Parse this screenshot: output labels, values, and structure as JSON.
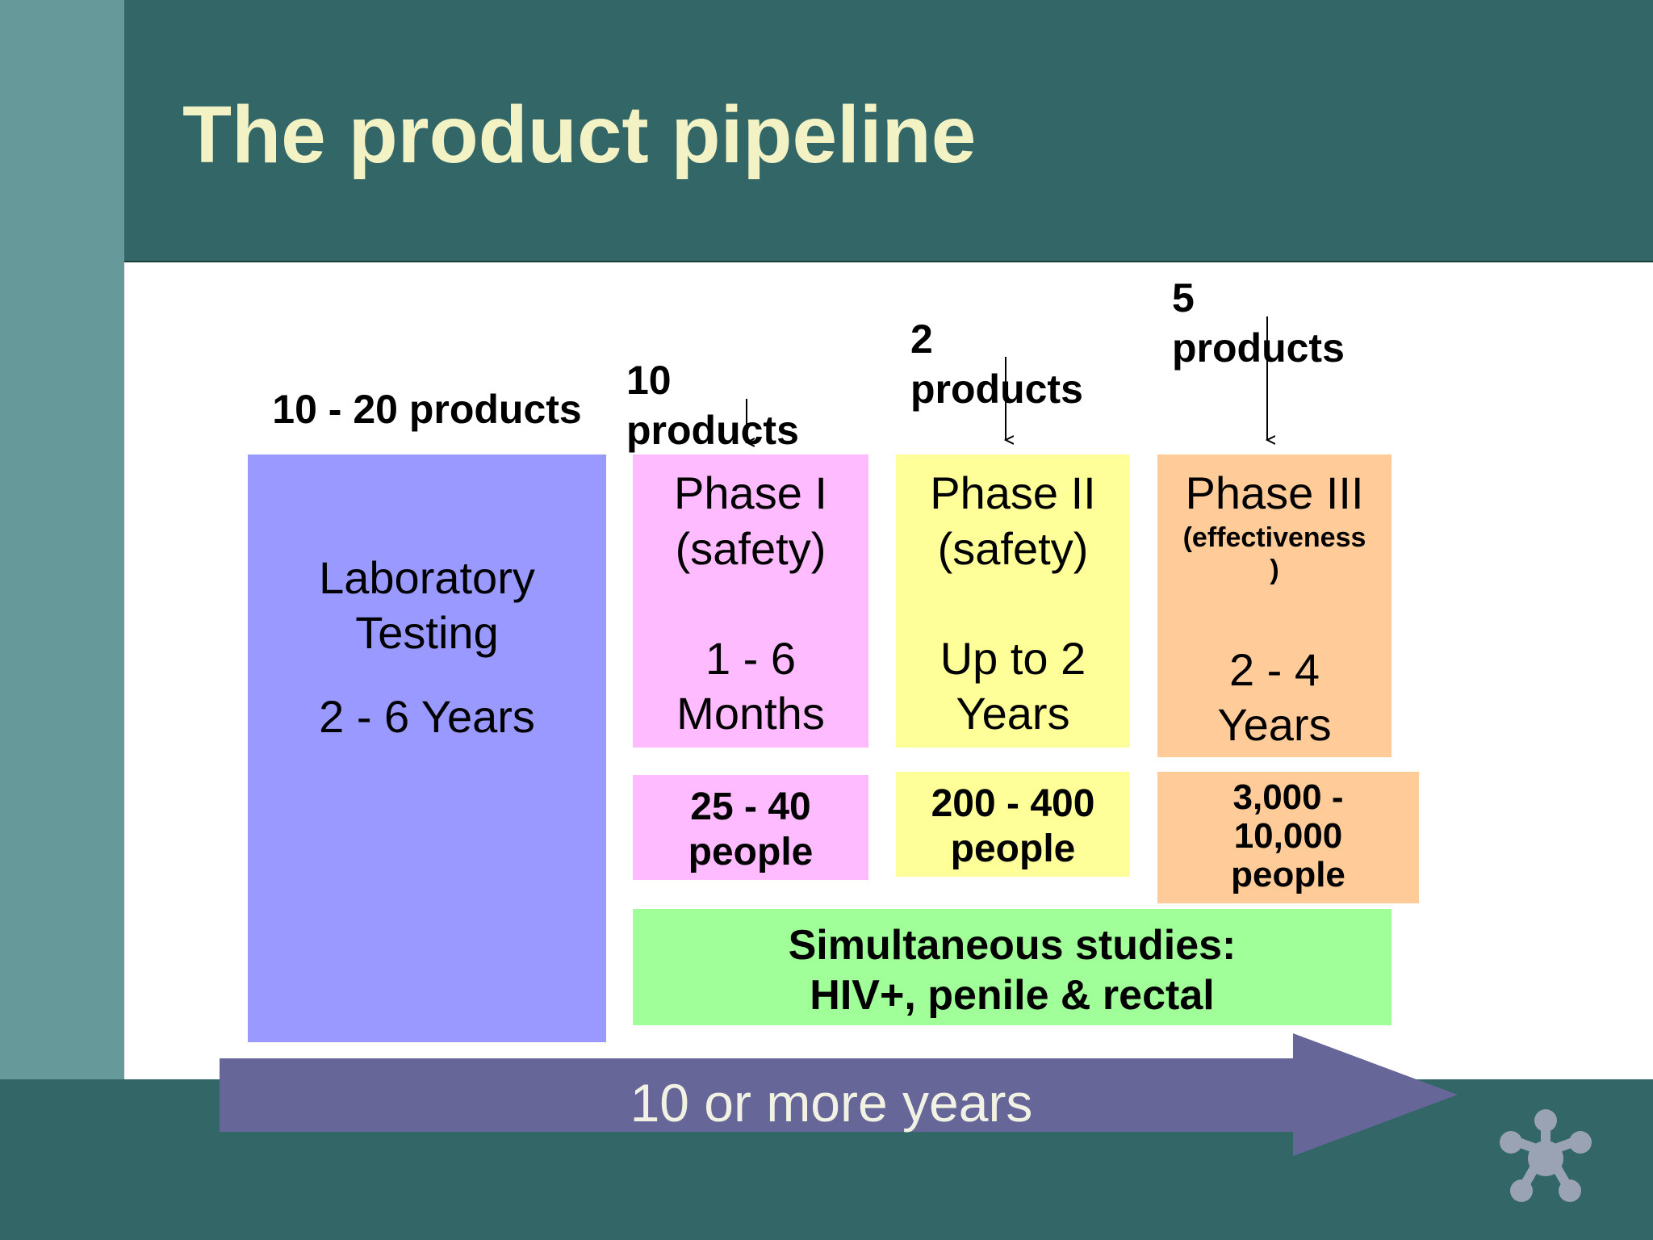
{
  "title": "The product pipeline",
  "stages": {
    "lab": {
      "count": "10 - 20 products",
      "name_line1": "Laboratory",
      "name_line2": "Testing",
      "duration": "2 - 6 Years",
      "color": "#9999ff"
    },
    "phase1": {
      "count_line1": "10",
      "count_line2": "products",
      "name": "Phase I",
      "purpose": "(safety)",
      "duration_line1": "1 - 6",
      "duration_line2": "Months",
      "people_line1": "25 - 40",
      "people_line2": "people",
      "color": "#ffbbff"
    },
    "phase2": {
      "count_line1": "2",
      "count_line2": "products",
      "name": "Phase II",
      "purpose": "(safety)",
      "duration_line1": "Up to 2",
      "duration_line2": "Years",
      "people_line1": "200 - 400",
      "people_line2": "people",
      "color": "#ffff99"
    },
    "phase3": {
      "count_line1": "5",
      "count_line2": "products",
      "name": "Phase III",
      "purpose_line1": "(effectiveness",
      "purpose_line2": ")",
      "duration_line1": "2 - 4",
      "duration_line2": "Years",
      "people_line1": "3,000 -",
      "people_line2": "10,000",
      "people_line3": "people",
      "color": "#ffcc99"
    }
  },
  "simultaneous": {
    "line1": "Simultaneous studies:",
    "line2": "HIV+, penile & rectal",
    "color": "#a0ff99"
  },
  "timeline": {
    "label": "10 or more years",
    "color": "#666699"
  },
  "colors": {
    "header": "#336666",
    "side_band": "#669999",
    "title": "#f2f2c4"
  }
}
